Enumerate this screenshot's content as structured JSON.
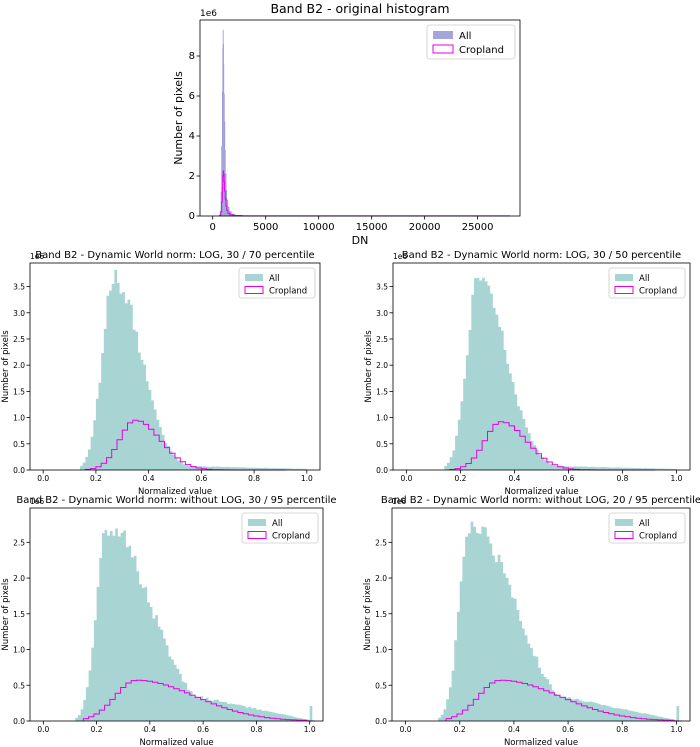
{
  "chart_data": [
    {
      "type": "histogram",
      "title": "Band B2 - original histogram",
      "xlabel": "DN",
      "ylabel": "Number of pixels",
      "y_scale_label": "1e6",
      "xlim": [
        -1200,
        29000
      ],
      "ylim": [
        0,
        9.8
      ],
      "x_ticks": [
        0,
        5000,
        10000,
        15000,
        20000,
        25000
      ],
      "x_tick_labels": [
        "0",
        "5000",
        "10000",
        "15000",
        "20000",
        "25000"
      ],
      "y_ticks": [
        0,
        2,
        4,
        6,
        8
      ],
      "y_tick_labels": [
        "0",
        "2",
        "4",
        "6",
        "8"
      ],
      "legend": {
        "placement": "top-right",
        "entries": [
          "All",
          "Cropland"
        ]
      },
      "series": [
        {
          "name": "All",
          "style": "filled",
          "color": "#8d8ed2",
          "bins": [
            [
              600,
              0.05
            ],
            [
              700,
              0.25
            ],
            [
              780,
              1.2
            ],
            [
              840,
              3.5
            ],
            [
              900,
              6.2
            ],
            [
              940,
              8.4
            ],
            [
              970,
              9.3
            ],
            [
              1000,
              8.6
            ],
            [
              1030,
              7.6
            ],
            [
              1060,
              6.1
            ],
            [
              1100,
              4.7
            ],
            [
              1150,
              3.3
            ],
            [
              1200,
              2.1
            ],
            [
              1260,
              1.3
            ],
            [
              1330,
              0.8
            ],
            [
              1420,
              0.45
            ],
            [
              1550,
              0.22
            ],
            [
              1750,
              0.1
            ],
            [
              2100,
              0.04
            ],
            [
              2800,
              0.015
            ],
            [
              4000,
              0.005
            ],
            [
              5500,
              0.002
            ],
            [
              28000,
              0
            ]
          ]
        },
        {
          "name": "Cropland",
          "style": "step",
          "color": "#e600e6",
          "bins": [
            [
              650,
              0.02
            ],
            [
              760,
              0.2
            ],
            [
              840,
              0.7
            ],
            [
              900,
              1.4
            ],
            [
              950,
              2.0
            ],
            [
              990,
              2.25
            ],
            [
              1030,
              2.1
            ],
            [
              1070,
              1.7
            ],
            [
              1120,
              1.25
            ],
            [
              1180,
              0.85
            ],
            [
              1250,
              0.5
            ],
            [
              1330,
              0.28
            ],
            [
              1430,
              0.14
            ],
            [
              1600,
              0.06
            ],
            [
              1900,
              0.02
            ],
            [
              2600,
              0.006
            ],
            [
              28000,
              0
            ]
          ]
        }
      ]
    },
    {
      "type": "histogram",
      "title": "Band B2 - Dynamic World norm: LOG, 30 / 70 percentile",
      "xlabel": "Normalized value",
      "ylabel": "Number of pixels",
      "y_scale_label": "1e6",
      "xlim": [
        -0.05,
        1.05
      ],
      "ylim": [
        0,
        3.95
      ],
      "x_ticks": [
        0,
        0.2,
        0.4,
        0.6,
        0.8,
        1.0
      ],
      "x_tick_labels": [
        "0.0",
        "0.2",
        "0.4",
        "0.6",
        "0.8",
        "1.0"
      ],
      "y_ticks": [
        0,
        0.5,
        1.0,
        1.5,
        2.0,
        2.5,
        3.0,
        3.5
      ],
      "y_tick_labels": [
        "0.0",
        "0.5",
        "1.0",
        "1.5",
        "2.0",
        "2.5",
        "3.0",
        "3.5"
      ],
      "legend": {
        "placement": "top-right",
        "entries": [
          "All",
          "Cropland"
        ]
      },
      "bin_width": 0.01,
      "series": [
        {
          "name": "All",
          "style": "filled",
          "color": "#a8d5d3",
          "curve": {
            "peak_x": 0.27,
            "peak_y": 3.72,
            "sigma_left": 0.045,
            "sigma_right": 0.1,
            "start": 0.14,
            "end": 1.0,
            "tail": 0.01
          }
        },
        {
          "name": "Cropland",
          "style": "step",
          "color": "#e600e6",
          "curve": {
            "peak_x": 0.35,
            "peak_y": 0.95,
            "sigma_left": 0.06,
            "sigma_right": 0.095,
            "start": 0.16,
            "end": 0.9,
            "tail": 0.0,
            "step": 0.02
          }
        }
      ]
    },
    {
      "type": "histogram",
      "title": "Band B2 - Dynamic World norm: LOG, 30 / 50 percentile",
      "xlabel": "Normalized value",
      "ylabel": "Number of pixels",
      "y_scale_label": "1e6",
      "xlim": [
        -0.05,
        1.05
      ],
      "ylim": [
        0,
        3.95
      ],
      "x_ticks": [
        0,
        0.2,
        0.4,
        0.6,
        0.8,
        1.0
      ],
      "x_tick_labels": [
        "0.0",
        "0.2",
        "0.4",
        "0.6",
        "0.8",
        "1.0"
      ],
      "y_ticks": [
        0,
        0.5,
        1.0,
        1.5,
        2.0,
        2.5,
        3.0,
        3.5
      ],
      "y_tick_labels": [
        "0.0",
        "0.5",
        "1.0",
        "1.5",
        "2.0",
        "2.5",
        "3.0",
        "3.5"
      ],
      "legend": {
        "placement": "top-right",
        "entries": [
          "All",
          "Cropland"
        ]
      },
      "bin_width": 0.01,
      "series": [
        {
          "name": "All",
          "style": "filled",
          "color": "#a8d5d3",
          "curve": {
            "peak_x": 0.27,
            "peak_y": 3.72,
            "sigma_left": 0.045,
            "sigma_right": 0.1,
            "start": 0.14,
            "end": 1.0,
            "tail": 0.01
          }
        },
        {
          "name": "Cropland",
          "style": "step",
          "color": "#e600e6",
          "curve": {
            "peak_x": 0.35,
            "peak_y": 0.92,
            "sigma_left": 0.06,
            "sigma_right": 0.095,
            "start": 0.16,
            "end": 0.9,
            "tail": 0.0,
            "step": 0.02
          }
        }
      ]
    },
    {
      "type": "histogram",
      "title": "Band B2 - Dynamic World norm: without LOG, 30 / 95 percentile",
      "xlabel": "Normalized value",
      "ylabel": "Number of pixels",
      "y_scale_label": "1e6",
      "xlim": [
        -0.05,
        1.05
      ],
      "ylim": [
        0,
        2.98
      ],
      "x_ticks": [
        0,
        0.2,
        0.4,
        0.6,
        0.8,
        1.0
      ],
      "x_tick_labels": [
        "0.0",
        "0.2",
        "0.4",
        "0.6",
        "0.8",
        "1.0"
      ],
      "y_ticks": [
        0,
        0.5,
        1.0,
        1.5,
        2.0,
        2.5
      ],
      "y_tick_labels": [
        "0.0",
        "0.5",
        "1.0",
        "1.5",
        "2.0",
        "2.5"
      ],
      "legend": {
        "placement": "top-right",
        "entries": [
          "All",
          "Cropland"
        ]
      },
      "bin_width": 0.01,
      "series": [
        {
          "name": "All",
          "style": "filled",
          "color": "#a8d5d3",
          "curve": {
            "peak_x": 0.24,
            "peak_y": 2.78,
            "sigma_left": 0.04,
            "sigma_right": 0.16,
            "start": 0.12,
            "end": 1.0,
            "tail": 0.2,
            "spike": 0.21
          }
        },
        {
          "name": "Cropland",
          "style": "step",
          "color": "#e600e6",
          "curve": {
            "peak_x": 0.35,
            "peak_y": 0.57,
            "sigma_left": 0.08,
            "sigma_right": 0.22,
            "start": 0.15,
            "end": 1.0,
            "tail": 0.06,
            "step": 0.02
          }
        }
      ]
    },
    {
      "type": "histogram",
      "title": "Band B2 - Dynamic World norm: without LOG, 20 / 95 percentile",
      "xlabel": "Normalized value",
      "ylabel": "Number of pixels",
      "y_scale_label": "1e6",
      "xlim": [
        -0.05,
        1.05
      ],
      "ylim": [
        0,
        2.98
      ],
      "x_ticks": [
        0,
        0.2,
        0.4,
        0.6,
        0.8,
        1.0
      ],
      "x_tick_labels": [
        "0.0",
        "0.2",
        "0.4",
        "0.6",
        "0.8",
        "1.0"
      ],
      "y_ticks": [
        0,
        0.5,
        1.0,
        1.5,
        2.0,
        2.5
      ],
      "y_tick_labels": [
        "0.0",
        "0.5",
        "1.0",
        "1.5",
        "2.0",
        "2.5"
      ],
      "legend": {
        "placement": "top-right",
        "entries": [
          "All",
          "Cropland"
        ]
      },
      "bin_width": 0.01,
      "series": [
        {
          "name": "All",
          "style": "filled",
          "color": "#a8d5d3",
          "curve": {
            "peak_x": 0.24,
            "peak_y": 2.78,
            "sigma_left": 0.04,
            "sigma_right": 0.16,
            "start": 0.12,
            "end": 1.0,
            "tail": 0.2,
            "spike": 0.21
          }
        },
        {
          "name": "Cropland",
          "style": "step",
          "color": "#e600e6",
          "curve": {
            "peak_x": 0.35,
            "peak_y": 0.57,
            "sigma_left": 0.08,
            "sigma_right": 0.22,
            "start": 0.15,
            "end": 1.0,
            "tail": 0.06,
            "step": 0.02
          }
        }
      ]
    }
  ]
}
